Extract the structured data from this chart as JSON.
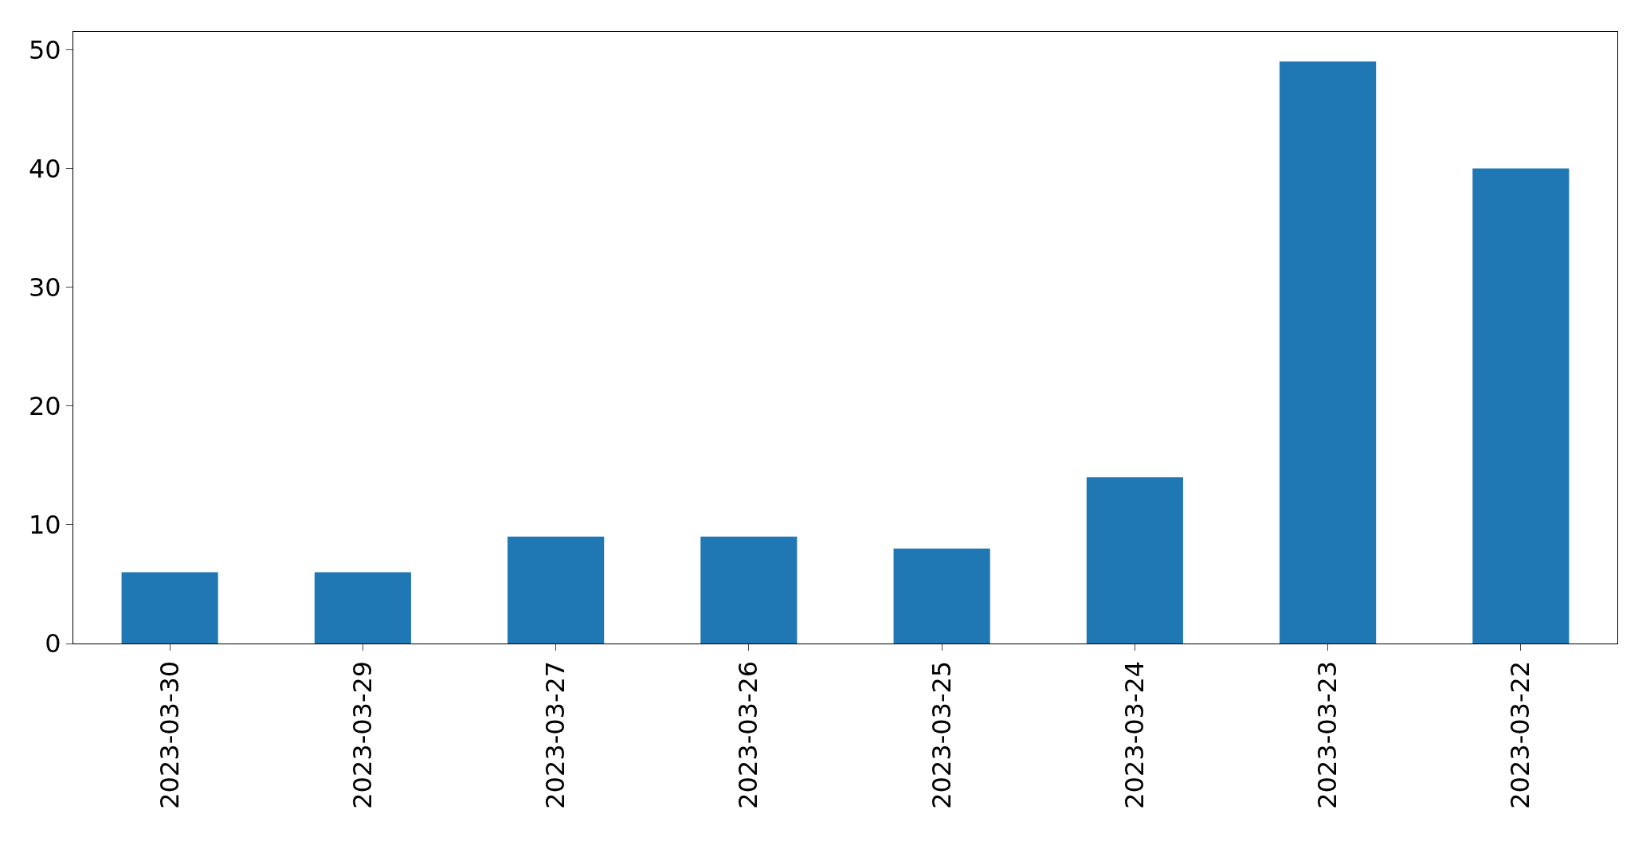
{
  "chart_data": {
    "type": "bar",
    "categories": [
      "2023-03-30",
      "2023-03-29",
      "2023-03-27",
      "2023-03-26",
      "2023-03-25",
      "2023-03-24",
      "2023-03-23",
      "2023-03-22"
    ],
    "values": [
      6,
      6,
      9,
      9,
      8,
      14,
      49,
      40
    ],
    "color": "#1f77b4",
    "ylim": [
      0,
      51.5
    ],
    "yticks": [
      0,
      10,
      20,
      30,
      40,
      50
    ]
  }
}
